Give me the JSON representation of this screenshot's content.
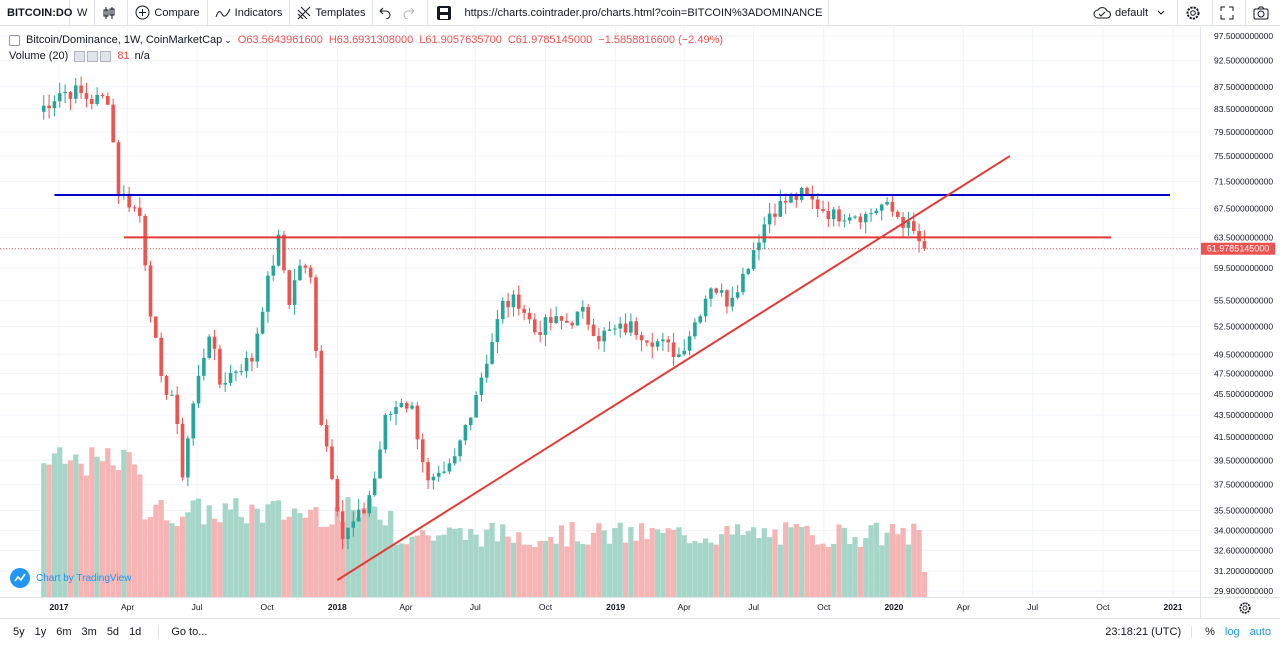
{
  "toolbar": {
    "symbol": "BITCOIN:DO",
    "interval": "W",
    "compare_label": "Compare",
    "indicators_label": "Indicators",
    "templates_label": "Templates",
    "url": "https://charts.cointrader.pro/charts.html?coin=BITCOIN%3ADOMINANCE",
    "theme_label": "default",
    "icons": [
      "candles-icon",
      "compare-plus-icon",
      "indicators-icon",
      "templates-icon",
      "undo-icon",
      "redo-icon",
      "save-icon",
      "cloud-icon",
      "gear-icon",
      "fullscreen-icon",
      "camera-icon"
    ]
  },
  "legend": {
    "title": "Bitcoin/Dominance, 1W, CoinMarketCap",
    "open": "O63.5643961600",
    "high": "H63.6931308000",
    "low": "L61.9057635700",
    "close": "C61.9785145000",
    "change": "−1.5858816600 (−2.49%)",
    "volume_label": "Volume (20)",
    "volume_value": "81",
    "volume_na": "n/a"
  },
  "watermark": "Chart by TradingView",
  "bottom": {
    "ranges": [
      "5y",
      "1y",
      "6m",
      "3m",
      "5d",
      "1d"
    ],
    "goto_label": "Go to...",
    "time": "23:18:21 (UTC)",
    "percent": "%",
    "log": "log",
    "auto": "auto"
  },
  "chart_data": {
    "type": "candlestick",
    "title": "Bitcoin/Dominance, 1W, CoinMarketCap",
    "last_price_label": "61.9785145000",
    "y_ticks": [
      "97.5000000000",
      "92.5000000000",
      "87.5000000000",
      "83.5000000000",
      "79.5000000000",
      "75.5000000000",
      "71.5000000000",
      "67.5000000000",
      "63.5000000000",
      "59.5000000000",
      "55.5000000000",
      "52.5000000000",
      "49.5000000000",
      "47.5000000000",
      "45.5000000000",
      "43.5000000000",
      "41.5000000000",
      "39.5000000000",
      "37.5000000000",
      "35.5000000000",
      "34.0000000000",
      "32.6000000000",
      "31.2000000000",
      "29.9000000000"
    ],
    "x_ticks": [
      "2017",
      "Apr",
      "Jul",
      "Oct",
      "2018",
      "Apr",
      "Jul",
      "Oct",
      "2019",
      "Apr",
      "Jul",
      "Oct",
      "2020",
      "Apr",
      "Jul",
      "Oct",
      "2021"
    ],
    "x_tick_dates": [
      "2017-01-01",
      "2017-04-01",
      "2017-07-01",
      "2017-10-01",
      "2018-01-01",
      "2018-04-01",
      "2018-07-01",
      "2018-10-01",
      "2019-01-01",
      "2019-04-01",
      "2019-07-01",
      "2019-10-01",
      "2020-01-01",
      "2020-04-01",
      "2020-07-01",
      "2020-10-01",
      "2021-01-01"
    ],
    "weekly_close_anchors": [
      [
        "2016-12-05",
        83.0
      ],
      [
        "2017-01-02",
        86.5
      ],
      [
        "2017-01-23",
        86.6
      ],
      [
        "2017-02-13",
        85.0
      ],
      [
        "2017-03-06",
        85.5
      ],
      [
        "2017-03-20",
        70.0
      ],
      [
        "2017-04-03",
        68.5
      ],
      [
        "2017-04-17",
        66.5
      ],
      [
        "2017-05-01",
        54.5
      ],
      [
        "2017-05-15",
        46.5
      ],
      [
        "2017-05-29",
        45.5
      ],
      [
        "2017-06-12",
        38.5
      ],
      [
        "2017-06-26",
        44.5
      ],
      [
        "2017-07-17",
        52.0
      ],
      [
        "2017-07-31",
        46.5
      ],
      [
        "2017-08-21",
        48.0
      ],
      [
        "2017-09-11",
        49.0
      ],
      [
        "2017-09-25",
        55.0
      ],
      [
        "2017-10-16",
        63.0
      ],
      [
        "2017-10-30",
        55.5
      ],
      [
        "2017-11-13",
        60.0
      ],
      [
        "2017-11-27",
        58.0
      ],
      [
        "2017-12-11",
        43.0
      ],
      [
        "2017-12-25",
        38.5
      ],
      [
        "2018-01-08",
        33.5
      ],
      [
        "2018-01-22",
        34.5
      ],
      [
        "2018-02-05",
        35.5
      ],
      [
        "2018-02-19",
        38.0
      ],
      [
        "2018-03-05",
        43.0
      ],
      [
        "2018-03-26",
        45.0
      ],
      [
        "2018-04-09",
        44.0
      ],
      [
        "2018-04-30",
        37.5
      ],
      [
        "2018-05-21",
        38.0
      ],
      [
        "2018-06-04",
        39.5
      ],
      [
        "2018-06-25",
        44.0
      ],
      [
        "2018-07-16",
        49.0
      ],
      [
        "2018-08-06",
        55.0
      ],
      [
        "2018-08-27",
        55.5
      ],
      [
        "2018-09-17",
        52.0
      ],
      [
        "2018-10-08",
        53.0
      ],
      [
        "2018-10-29",
        53.0
      ],
      [
        "2018-11-19",
        54.0
      ],
      [
        "2018-12-10",
        51.5
      ],
      [
        "2018-12-31",
        52.0
      ],
      [
        "2019-01-21",
        52.5
      ],
      [
        "2019-02-11",
        51.5
      ],
      [
        "2019-03-04",
        50.5
      ],
      [
        "2019-03-25",
        49.5
      ],
      [
        "2019-04-15",
        53.0
      ],
      [
        "2019-05-06",
        57.5
      ],
      [
        "2019-05-27",
        55.5
      ],
      [
        "2019-06-17",
        58.5
      ],
      [
        "2019-07-01",
        62.0
      ],
      [
        "2019-07-22",
        67.0
      ],
      [
        "2019-08-12",
        68.5
      ],
      [
        "2019-09-02",
        69.5
      ],
      [
        "2019-09-23",
        68.0
      ],
      [
        "2019-10-14",
        66.5
      ],
      [
        "2019-11-04",
        67.0
      ],
      [
        "2019-11-25",
        66.5
      ],
      [
        "2019-12-16",
        68.0
      ],
      [
        "2020-01-06",
        66.5
      ],
      [
        "2020-01-27",
        64.0
      ],
      [
        "2020-02-10",
        61.98
      ]
    ],
    "volume_note": "volume histogram bars coloured by candle direction",
    "drawings": [
      {
        "type": "horizontal-line",
        "color": "#0000c8",
        "value": 69.5,
        "from": "2016-12-26",
        "to": "2020-12-28"
      },
      {
        "type": "horizontal-line",
        "color": "#e53935",
        "value": 63.5,
        "from": "2017-03-27",
        "to": "2020-10-12"
      },
      {
        "type": "trend-line",
        "color": "#e53935",
        "from": [
          "2018-01-01",
          30.6
        ],
        "to": [
          "2020-06-01",
          75.5
        ]
      }
    ],
    "colors": {
      "up": "#26a69a",
      "down": "#ef5350",
      "vol_up": "#a5d6c8",
      "vol_down": "#f5b5b5",
      "grid": "#f0f3fa"
    }
  }
}
